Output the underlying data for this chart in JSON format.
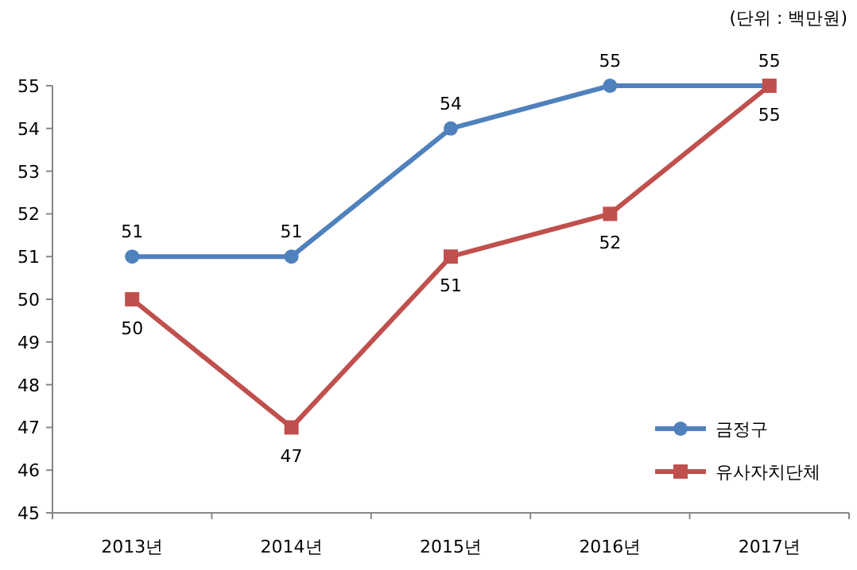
{
  "chart_data": {
    "type": "line",
    "categories": [
      "2013년",
      "2014년",
      "2015년",
      "2016년",
      "2017년"
    ],
    "series": [
      {
        "name": "금정구",
        "color": "#4f81bd",
        "marker": "circle",
        "values": [
          51,
          51,
          54,
          55,
          55
        ]
      },
      {
        "name": "유사자치단체",
        "color": "#c0504d",
        "marker": "square",
        "values": [
          50,
          47,
          51,
          52,
          55
        ]
      }
    ],
    "ylim": [
      45,
      55
    ],
    "yticks": [
      45,
      46,
      47,
      48,
      49,
      50,
      51,
      52,
      53,
      54,
      55
    ],
    "data_labels": true,
    "grid": false,
    "legend": "bottom right",
    "annotations": [
      "(단위 : 백만원)"
    ]
  }
}
